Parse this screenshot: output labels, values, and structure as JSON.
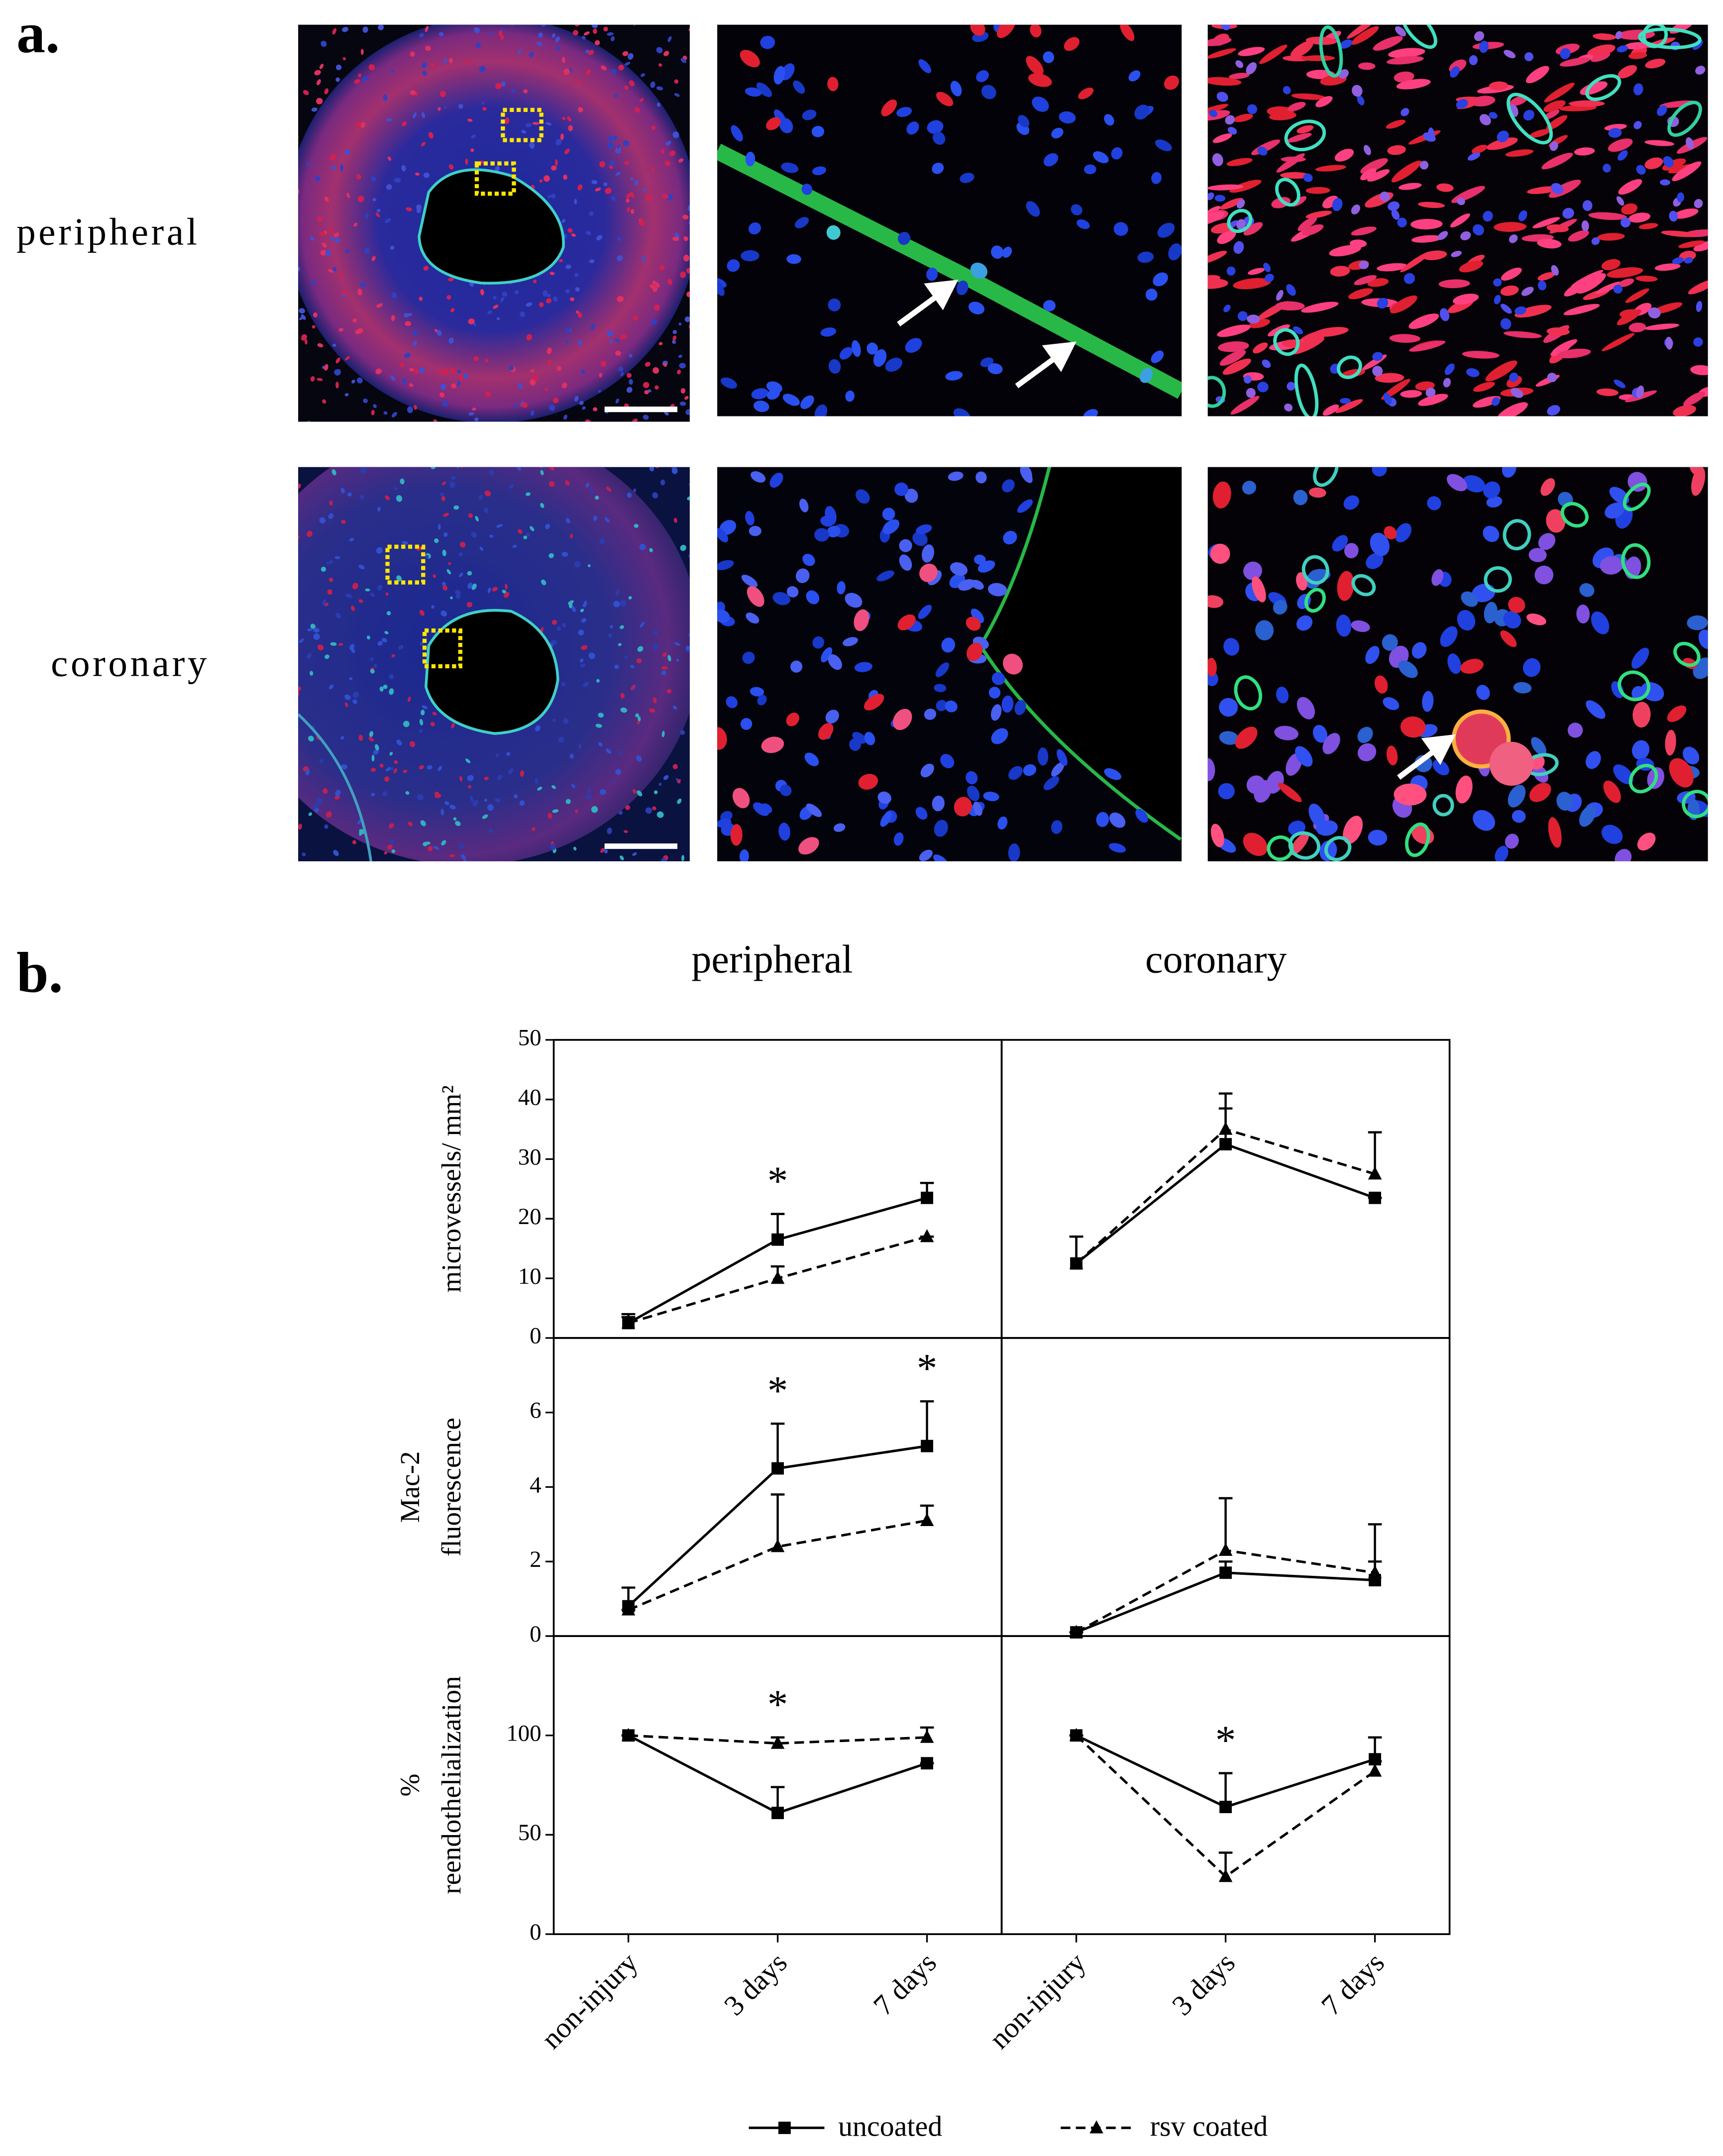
{
  "panel_a": {
    "label": "a.",
    "row_labels": [
      "peripheral",
      "coronary"
    ]
  },
  "panel_b": {
    "label": "b.",
    "column_labels": [
      "peripheral",
      "coronary"
    ]
  },
  "legend": [
    {
      "name": "uncoated",
      "color": "#000000",
      "dashed": false,
      "marker": "square"
    },
    {
      "name": "rsv coated",
      "color": "#000000",
      "dashed": true,
      "marker": "triangle"
    }
  ],
  "chart_data": [
    {
      "type": "line",
      "ylabel": [
        "microvessels/ mm²"
      ],
      "categories": [
        null,
        null,
        null
      ],
      "ylim": [
        0,
        50
      ],
      "yticks": [
        0,
        10,
        20,
        30,
        40,
        50
      ],
      "series": [
        {
          "values": [
            2.5,
            16.5,
            23.5
          ],
          "errors": [
            1.5,
            4.3,
            2.5
          ]
        },
        {
          "values": [
            2.5,
            10,
            17
          ],
          "errors": [
            1,
            2,
            0
          ]
        }
      ],
      "annotations": [
        null,
        "*",
        null
      ]
    },
    {
      "type": "line",
      "categories": [
        null,
        null,
        null
      ],
      "ylim": [
        0,
        50
      ],
      "series": [
        {
          "values": [
            12.5,
            32.5,
            23.5
          ],
          "errors": [
            4.5,
            6,
            0
          ]
        },
        {
          "values": [
            12.5,
            35,
            27.5
          ],
          "errors": [
            4.5,
            6,
            7
          ]
        }
      ],
      "annotations": [
        null,
        null,
        null
      ]
    },
    {
      "type": "line",
      "ylabel": [
        "Mac-2",
        "fluorescence"
      ],
      "categories": [
        null,
        null,
        null
      ],
      "ylim": [
        0,
        8
      ],
      "yticks": [
        0,
        2,
        4,
        6
      ],
      "series": [
        {
          "values": [
            0.8,
            4.5,
            5.1
          ],
          "errors": [
            0.5,
            1.2,
            1.2
          ]
        },
        {
          "values": [
            0.7,
            2.4,
            3.1
          ],
          "errors": [
            0,
            1.4,
            0.4
          ]
        }
      ],
      "annotations": [
        null,
        "*",
        "*"
      ]
    },
    {
      "type": "line",
      "categories": [
        null,
        null,
        null
      ],
      "ylim": [
        0,
        8
      ],
      "series": [
        {
          "values": [
            0.1,
            1.7,
            1.5
          ],
          "errors": [
            0,
            0.3,
            0.5
          ]
        },
        {
          "values": [
            0.1,
            2.3,
            1.7
          ],
          "errors": [
            0,
            1.4,
            1.3
          ]
        }
      ],
      "annotations": [
        null,
        null,
        null
      ]
    },
    {
      "type": "line",
      "ylabel": [
        "%",
        "reendothelialization"
      ],
      "categories": [
        "non-injury",
        "3 days",
        "7 days"
      ],
      "ylim": [
        0,
        150
      ],
      "yticks": [
        0,
        50,
        100
      ],
      "series": [
        {
          "values": [
            100,
            61,
            86
          ],
          "errors": [
            0,
            13,
            0
          ]
        },
        {
          "values": [
            100,
            96,
            99
          ],
          "errors": [
            0,
            3,
            5
          ]
        }
      ],
      "annotations": [
        null,
        "*",
        null
      ]
    },
    {
      "type": "line",
      "categories": [
        "non-injury",
        "3 days",
        "7 days"
      ],
      "ylim": [
        0,
        150
      ],
      "series": [
        {
          "values": [
            100,
            64,
            88
          ],
          "errors": [
            0,
            17,
            11
          ]
        },
        {
          "values": [
            100,
            29,
            82
          ],
          "errors": [
            0,
            12,
            5
          ]
        }
      ],
      "annotations": [
        null,
        "*",
        null
      ]
    }
  ]
}
